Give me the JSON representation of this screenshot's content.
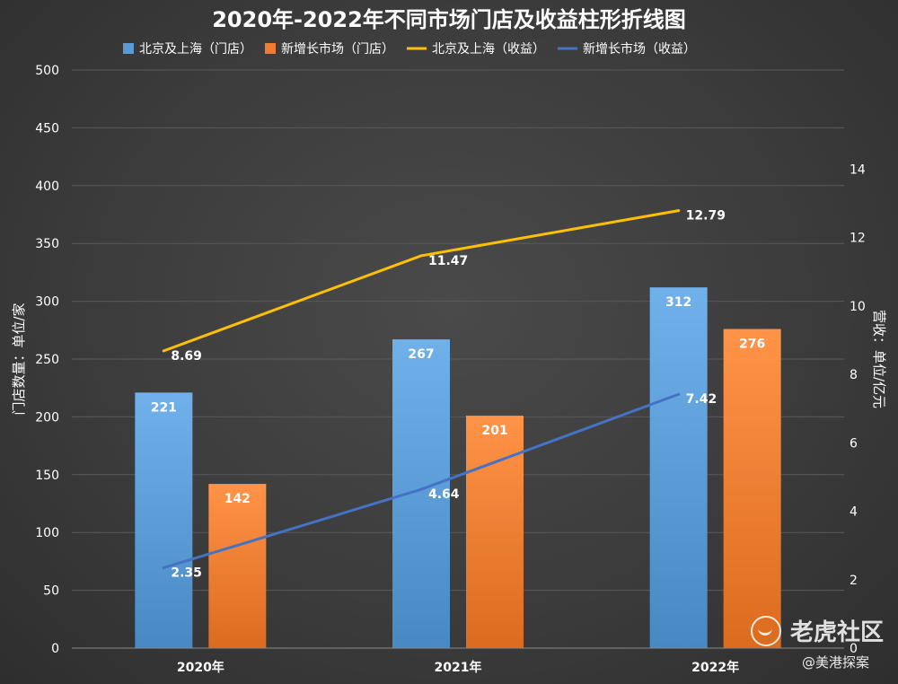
{
  "chart_data": {
    "type": "bar",
    "title": "2020年-2022年不同市场门店及收益柱形折线图",
    "categories": [
      "2020年",
      "2021年",
      "2022年"
    ],
    "series": [
      {
        "name": "北京及上海（门店）",
        "kind": "bar",
        "axis": "left",
        "color": "#5b9bd5",
        "values": [
          221,
          267,
          312
        ],
        "labels": [
          "221",
          "267",
          "312"
        ]
      },
      {
        "name": "新增长市场（门店）",
        "kind": "bar",
        "axis": "left",
        "color": "#ed7d31",
        "values": [
          142,
          201,
          276
        ],
        "labels": [
          "142",
          "201",
          "276"
        ]
      },
      {
        "name": "北京及上海（收益）",
        "kind": "line",
        "axis": "right",
        "color": "#ffc000",
        "values": [
          8.69,
          11.47,
          12.79
        ],
        "labels": [
          "8.69",
          "11.47",
          "12.79"
        ]
      },
      {
        "name": "新增长市场（收益）",
        "kind": "line",
        "axis": "right",
        "color": "#4472c4",
        "values": [
          2.35,
          4.64,
          7.42
        ],
        "labels": [
          "2.35",
          "4.64",
          "7.42"
        ]
      }
    ],
    "ylabel": "门店数量：单位/家",
    "y2label": "营收：单位/亿元",
    "ylim": [
      0,
      500
    ],
    "y2lim": [
      0,
      16.9
    ],
    "yticks": [
      "0",
      "50",
      "100",
      "150",
      "200",
      "250",
      "300",
      "350",
      "400",
      "450",
      "500"
    ],
    "y2ticks": [
      "0",
      "2",
      "4",
      "6",
      "8",
      "10",
      "12",
      "14"
    ],
    "legend_position": "top",
    "grid": true
  },
  "watermark": {
    "main": "老虎社区",
    "sub": "@美港探案"
  }
}
